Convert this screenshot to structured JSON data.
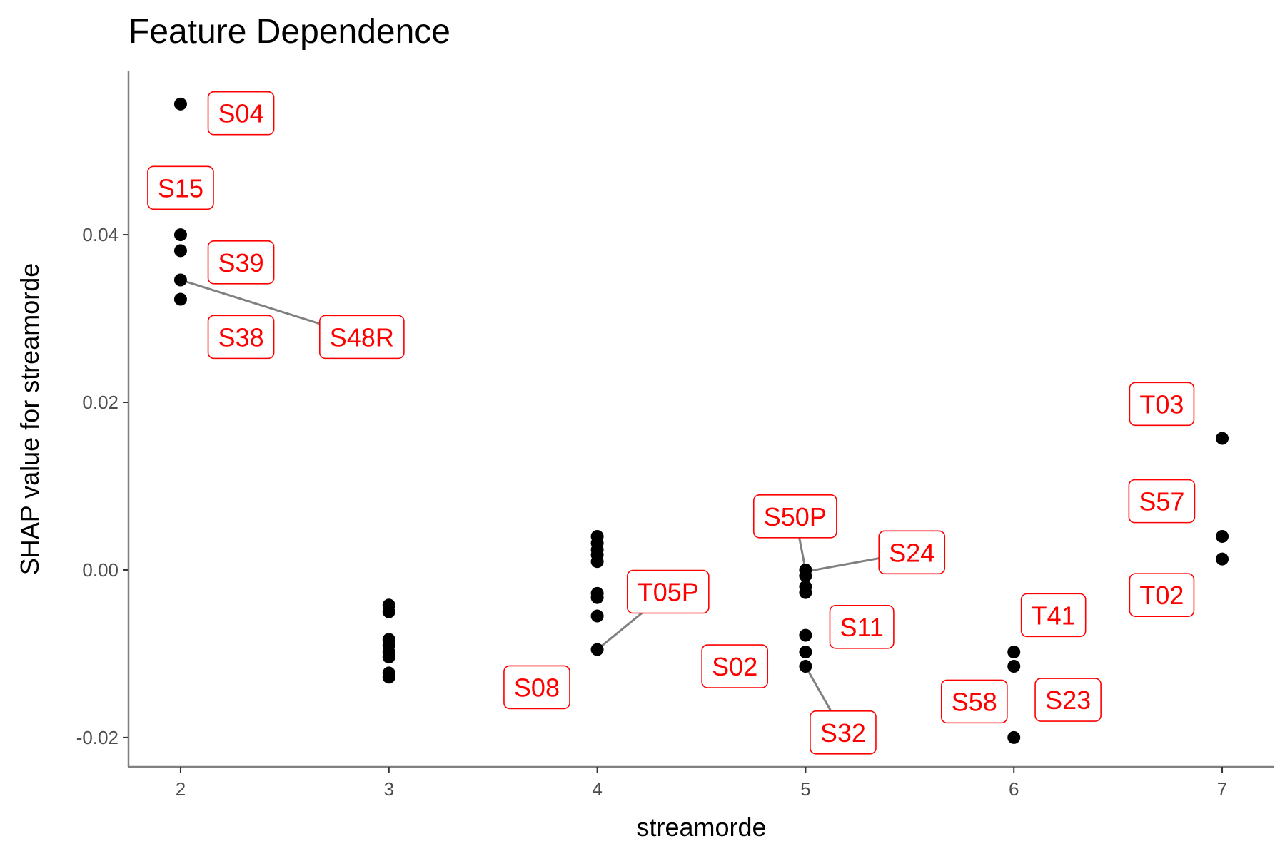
{
  "chart_data": {
    "type": "scatter",
    "title": "Feature Dependence",
    "xlabel": "streamorde",
    "ylabel": "SHAP value for streamorde",
    "xlim": [
      1.75,
      7.25
    ],
    "ylim": [
      -0.0235,
      0.0595
    ],
    "x_ticks": [
      2,
      3,
      4,
      5,
      6,
      7
    ],
    "x_tick_labels": [
      "2",
      "3",
      "4",
      "5",
      "6",
      "7"
    ],
    "y_ticks": [
      -0.02,
      0.0,
      0.02,
      0.04
    ],
    "y_tick_labels": [
      "-0.02",
      "0.00",
      "0.02",
      "0.04"
    ],
    "grid": false,
    "legend": "none",
    "colors": {
      "point": "#000000",
      "label": "#ff0000",
      "leader": "#808080",
      "axis": "#808080"
    },
    "points": [
      {
        "x": 2,
        "y": 0.0556
      },
      {
        "x": 2,
        "y": 0.04
      },
      {
        "x": 2,
        "y": 0.0381
      },
      {
        "x": 2,
        "y": 0.0346
      },
      {
        "x": 2,
        "y": 0.0323
      },
      {
        "x": 3,
        "y": -0.0042
      },
      {
        "x": 3,
        "y": -0.005
      },
      {
        "x": 3,
        "y": -0.0083
      },
      {
        "x": 3,
        "y": -0.009
      },
      {
        "x": 3,
        "y": -0.0098
      },
      {
        "x": 3,
        "y": -0.0104
      },
      {
        "x": 3,
        "y": -0.0123
      },
      {
        "x": 3,
        "y": -0.0128
      },
      {
        "x": 4,
        "y": 0.004
      },
      {
        "x": 4,
        "y": 0.0032
      },
      {
        "x": 4,
        "y": 0.0024
      },
      {
        "x": 4,
        "y": 0.0018
      },
      {
        "x": 4,
        "y": 0.001
      },
      {
        "x": 4,
        "y": -0.0028
      },
      {
        "x": 4,
        "y": -0.0033
      },
      {
        "x": 4,
        "y": -0.0055
      },
      {
        "x": 4,
        "y": -0.0095
      },
      {
        "x": 5,
        "y": 0.0
      },
      {
        "x": 5,
        "y": -0.0007
      },
      {
        "x": 5,
        "y": -0.002
      },
      {
        "x": 5,
        "y": -0.0027
      },
      {
        "x": 5,
        "y": -0.0078
      },
      {
        "x": 5,
        "y": -0.0098
      },
      {
        "x": 5,
        "y": -0.0115
      },
      {
        "x": 6,
        "y": -0.0098
      },
      {
        "x": 6,
        "y": -0.0115
      },
      {
        "x": 6,
        "y": -0.02
      },
      {
        "x": 7,
        "y": 0.0157
      },
      {
        "x": 7,
        "y": 0.004
      },
      {
        "x": 7,
        "y": 0.0013
      }
    ],
    "annotations": [
      {
        "text": "S04",
        "x": 2.29,
        "y": 0.0545
      },
      {
        "text": "S15",
        "x": 2.0,
        "y": 0.0456
      },
      {
        "text": "S39",
        "x": 2.29,
        "y": 0.0367
      },
      {
        "text": "S38",
        "x": 2.29,
        "y": 0.0278
      },
      {
        "text": "S48R",
        "x": 2.87,
        "y": 0.0278,
        "leader_to": {
          "x": 2,
          "y": 0.0346
        }
      },
      {
        "text": "T05P",
        "x": 4.34,
        "y": -0.0026,
        "leader_to": {
          "x": 4,
          "y": -0.0095
        }
      },
      {
        "text": "S08",
        "x": 3.71,
        "y": -0.014
      },
      {
        "text": "S50P",
        "x": 4.95,
        "y": 0.0064,
        "leader_to": {
          "x": 5,
          "y": 0.0
        }
      },
      {
        "text": "S24",
        "x": 5.51,
        "y": 0.0021,
        "leader_to": {
          "x": 5,
          "y": -0.0002
        }
      },
      {
        "text": "S11",
        "x": 5.27,
        "y": -0.0068
      },
      {
        "text": "S02",
        "x": 4.66,
        "y": -0.0115
      },
      {
        "text": "S32",
        "x": 5.18,
        "y": -0.0194,
        "leader_to": {
          "x": 5,
          "y": -0.0115
        }
      },
      {
        "text": "T41",
        "x": 6.19,
        "y": -0.0054
      },
      {
        "text": "S58",
        "x": 5.81,
        "y": -0.0157
      },
      {
        "text": "S23",
        "x": 6.26,
        "y": -0.0155
      },
      {
        "text": "T03",
        "x": 6.71,
        "y": 0.0198
      },
      {
        "text": "S57",
        "x": 6.71,
        "y": 0.0082
      },
      {
        "text": "T02",
        "x": 6.71,
        "y": -0.003
      }
    ]
  }
}
